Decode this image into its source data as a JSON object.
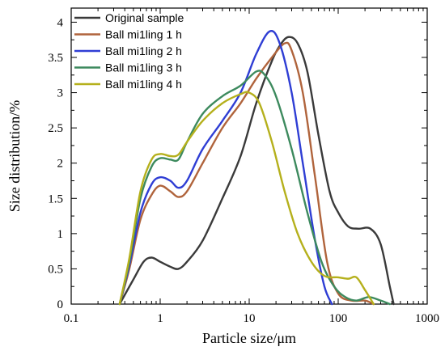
{
  "chart_data": {
    "type": "line",
    "title": "",
    "xlabel": "Particle size/μm",
    "ylabel": "Size distribution/%",
    "xscale": "log",
    "xlim": [
      0.1,
      1000
    ],
    "ylim": [
      0,
      4.2
    ],
    "x_ticks": [
      0.1,
      1,
      10,
      100,
      1000
    ],
    "x_tick_labels": [
      "0.1",
      "1",
      "10",
      "100",
      "1000"
    ],
    "y_ticks": [
      0,
      0.5,
      1,
      1.5,
      2,
      2.5,
      3,
      3.5,
      4
    ],
    "y_tick_labels": [
      "0",
      "0.5",
      "1",
      "1.5",
      "2",
      "2.5",
      "3",
      "3.5",
      "4"
    ],
    "grid": false,
    "legend_position": "top-left",
    "series": [
      {
        "name": "Original sample",
        "color": "#3a3a3a",
        "points": [
          [
            0.35,
            0
          ],
          [
            0.5,
            0.35
          ],
          [
            0.65,
            0.6
          ],
          [
            0.8,
            0.66
          ],
          [
            1.0,
            0.6
          ],
          [
            1.3,
            0.53
          ],
          [
            1.6,
            0.5
          ],
          [
            2.0,
            0.6
          ],
          [
            3.0,
            0.9
          ],
          [
            5.0,
            1.5
          ],
          [
            8.0,
            2.1
          ],
          [
            12.0,
            2.85
          ],
          [
            18.0,
            3.45
          ],
          [
            23.0,
            3.7
          ],
          [
            28.0,
            3.79
          ],
          [
            35.0,
            3.7
          ],
          [
            45.0,
            3.3
          ],
          [
            60.0,
            2.4
          ],
          [
            80.0,
            1.6
          ],
          [
            100.0,
            1.3
          ],
          [
            130.0,
            1.1
          ],
          [
            170.0,
            1.07
          ],
          [
            230.0,
            1.07
          ],
          [
            300.0,
            0.85
          ],
          [
            380.0,
            0.25
          ],
          [
            420.0,
            0
          ]
        ]
      },
      {
        "name": "Ball mi1ling 1 h",
        "color": "#b0643c",
        "points": [
          [
            0.35,
            0
          ],
          [
            0.45,
            0.5
          ],
          [
            0.6,
            1.2
          ],
          [
            0.8,
            1.55
          ],
          [
            1.0,
            1.68
          ],
          [
            1.3,
            1.6
          ],
          [
            1.6,
            1.52
          ],
          [
            2.0,
            1.6
          ],
          [
            3.0,
            2.0
          ],
          [
            5.0,
            2.5
          ],
          [
            8.0,
            2.85
          ],
          [
            12.0,
            3.2
          ],
          [
            18.0,
            3.5
          ],
          [
            25.0,
            3.7
          ],
          [
            30.0,
            3.6
          ],
          [
            40.0,
            3.0
          ],
          [
            55.0,
            1.8
          ],
          [
            75.0,
            0.6
          ],
          [
            100.0,
            0.15
          ],
          [
            140.0,
            0.05
          ],
          [
            200.0,
            0.05
          ],
          [
            250.0,
            0
          ]
        ]
      },
      {
        "name": "Ball mi1ling 2 h",
        "color": "#2f3ed4",
        "points": [
          [
            0.35,
            0
          ],
          [
            0.45,
            0.55
          ],
          [
            0.6,
            1.3
          ],
          [
            0.8,
            1.7
          ],
          [
            1.0,
            1.8
          ],
          [
            1.3,
            1.75
          ],
          [
            1.6,
            1.65
          ],
          [
            2.0,
            1.75
          ],
          [
            3.0,
            2.2
          ],
          [
            5.0,
            2.6
          ],
          [
            8.0,
            3.0
          ],
          [
            12.0,
            3.55
          ],
          [
            17.0,
            3.87
          ],
          [
            22.0,
            3.7
          ],
          [
            30.0,
            3.0
          ],
          [
            40.0,
            2.0
          ],
          [
            55.0,
            0.9
          ],
          [
            70.0,
            0.25
          ],
          [
            85.0,
            0
          ]
        ]
      },
      {
        "name": "Ball mi1ling 3 h",
        "color": "#3d8a5e",
        "points": [
          [
            0.35,
            0
          ],
          [
            0.45,
            0.6
          ],
          [
            0.6,
            1.5
          ],
          [
            0.8,
            1.95
          ],
          [
            1.0,
            2.07
          ],
          [
            1.3,
            2.05
          ],
          [
            1.6,
            2.05
          ],
          [
            2.0,
            2.3
          ],
          [
            3.0,
            2.7
          ],
          [
            5.0,
            2.95
          ],
          [
            8.0,
            3.1
          ],
          [
            12.0,
            3.3
          ],
          [
            15.0,
            3.25
          ],
          [
            20.0,
            2.95
          ],
          [
            30.0,
            2.2
          ],
          [
            45.0,
            1.3
          ],
          [
            65.0,
            0.6
          ],
          [
            90.0,
            0.25
          ],
          [
            120.0,
            0.1
          ],
          [
            160.0,
            0.05
          ],
          [
            220.0,
            0.1
          ],
          [
            300.0,
            0.05
          ],
          [
            380.0,
            0
          ]
        ]
      },
      {
        "name": "Ball mi1ling 4 h",
        "color": "#b5b01c",
        "points": [
          [
            0.35,
            0
          ],
          [
            0.45,
            0.65
          ],
          [
            0.6,
            1.6
          ],
          [
            0.8,
            2.05
          ],
          [
            1.0,
            2.13
          ],
          [
            1.3,
            2.1
          ],
          [
            1.6,
            2.12
          ],
          [
            2.0,
            2.3
          ],
          [
            3.0,
            2.6
          ],
          [
            5.0,
            2.85
          ],
          [
            8.0,
            2.98
          ],
          [
            10.0,
            3.0
          ],
          [
            13.0,
            2.85
          ],
          [
            18.0,
            2.3
          ],
          [
            25.0,
            1.6
          ],
          [
            35.0,
            1.0
          ],
          [
            50.0,
            0.6
          ],
          [
            70.0,
            0.4
          ],
          [
            100.0,
            0.38
          ],
          [
            130.0,
            0.36
          ],
          [
            160.0,
            0.38
          ],
          [
            200.0,
            0.2
          ],
          [
            250.0,
            0
          ]
        ]
      }
    ]
  }
}
